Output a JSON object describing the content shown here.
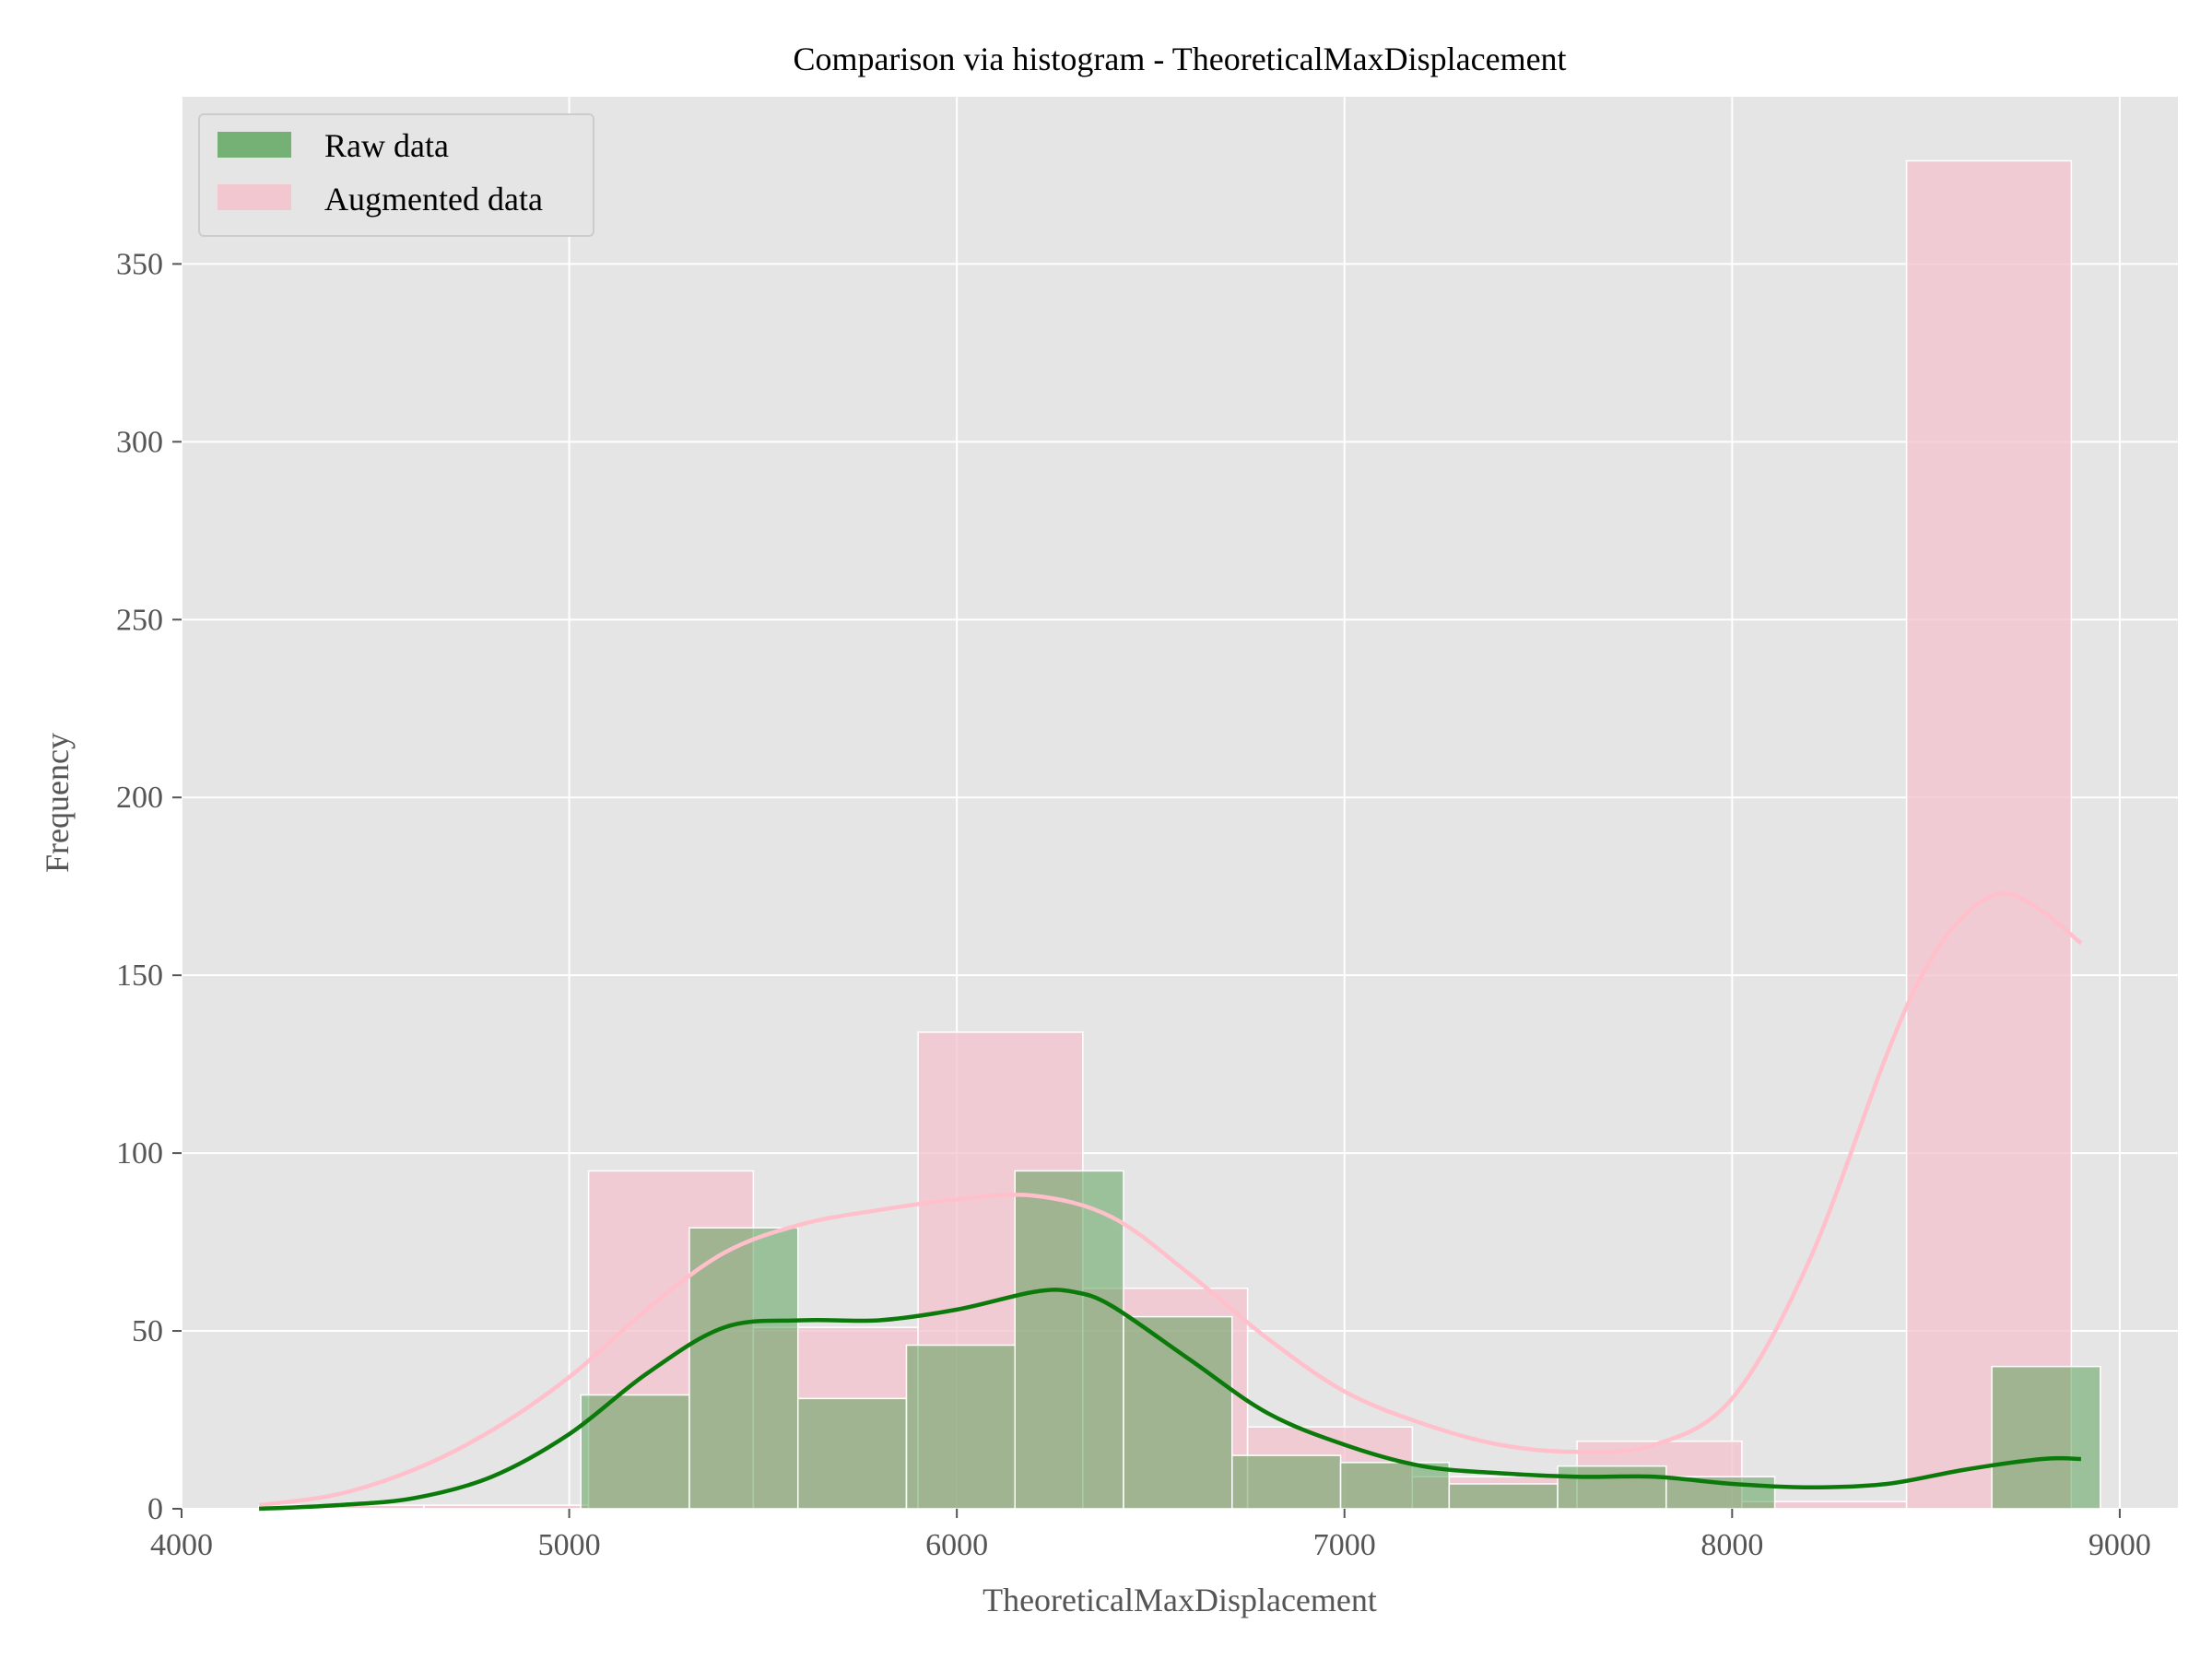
{
  "chart_data": {
    "type": "bar",
    "title": "Comparison via histogram - TheoreticalMaxDisplacement",
    "xlabel": "TheoreticalMaxDisplacement",
    "ylabel": "Frequency",
    "xlim": [
      4000,
      9150
    ],
    "ylim": [
      0,
      397
    ],
    "x_ticks": [
      4000,
      5000,
      6000,
      7000,
      8000,
      9000
    ],
    "y_ticks": [
      0,
      50,
      100,
      150,
      200,
      250,
      300,
      350
    ],
    "grid": true,
    "legend_position": "top-left",
    "series": [
      {
        "name": "Augmented data",
        "color": "#f4c2cc",
        "kde_color": "#ffc0cb",
        "bins": [
          {
            "x0": 4200,
            "x1": 4625,
            "value": 1
          },
          {
            "x0": 4625,
            "x1": 5050,
            "value": 1
          },
          {
            "x0": 5050,
            "x1": 5475,
            "value": 95
          },
          {
            "x0": 5475,
            "x1": 5900,
            "value": 51
          },
          {
            "x0": 5900,
            "x1": 6325,
            "value": 134
          },
          {
            "x0": 6325,
            "x1": 6750,
            "value": 62
          },
          {
            "x0": 6750,
            "x1": 7175,
            "value": 23
          },
          {
            "x0": 7175,
            "x1": 7600,
            "value": 9
          },
          {
            "x0": 7600,
            "x1": 8025,
            "value": 19
          },
          {
            "x0": 8025,
            "x1": 8450,
            "value": 2
          },
          {
            "x0": 8450,
            "x1": 8875,
            "value": 379
          }
        ],
        "kde": {
          "x": [
            4200,
            4400,
            4600,
            4800,
            5000,
            5200,
            5400,
            5600,
            5800,
            6000,
            6200,
            6400,
            6600,
            6800,
            7000,
            7200,
            7400,
            7600,
            7800,
            8000,
            8200,
            8400,
            8500,
            8600,
            8700,
            8800,
            8900
          ],
          "y": [
            1,
            4,
            11,
            22,
            37,
            56,
            72,
            80,
            84,
            87,
            88,
            82,
            66,
            48,
            33,
            24,
            18,
            16,
            18,
            31,
            70,
            128,
            152,
            167,
            173,
            168,
            159
          ]
        }
      },
      {
        "name": "Raw data",
        "color": "#4f9e4f",
        "kde_color": "#0b7a0b",
        "bins": [
          {
            "x0": 5030,
            "x1": 5310,
            "value": 32
          },
          {
            "x0": 5310,
            "x1": 5590,
            "value": 79
          },
          {
            "x0": 5590,
            "x1": 5870,
            "value": 31
          },
          {
            "x0": 5870,
            "x1": 6150,
            "value": 46
          },
          {
            "x0": 6150,
            "x1": 6430,
            "value": 95
          },
          {
            "x0": 6430,
            "x1": 6710,
            "value": 54
          },
          {
            "x0": 6710,
            "x1": 6990,
            "value": 15
          },
          {
            "x0": 6990,
            "x1": 7270,
            "value": 13
          },
          {
            "x0": 7270,
            "x1": 7550,
            "value": 7
          },
          {
            "x0": 7550,
            "x1": 7830,
            "value": 12
          },
          {
            "x0": 7830,
            "x1": 8110,
            "value": 9
          },
          {
            "x0": 8110,
            "x1": 8390,
            "value": 0
          },
          {
            "x0": 8390,
            "x1": 8670,
            "value": 0
          },
          {
            "x0": 8670,
            "x1": 8950,
            "value": 40
          }
        ],
        "kde": {
          "x": [
            4200,
            4400,
            4600,
            4800,
            5000,
            5200,
            5400,
            5600,
            5800,
            6000,
            6200,
            6300,
            6400,
            6600,
            6800,
            7000,
            7200,
            7400,
            7600,
            7800,
            8000,
            8200,
            8400,
            8600,
            8800,
            8900
          ],
          "y": [
            0,
            1,
            3,
            9,
            21,
            38,
            51,
            53,
            53,
            56,
            61,
            61,
            57,
            42,
            27,
            18,
            12,
            10,
            9,
            9,
            7,
            6,
            7,
            11,
            14,
            14
          ]
        }
      }
    ]
  }
}
